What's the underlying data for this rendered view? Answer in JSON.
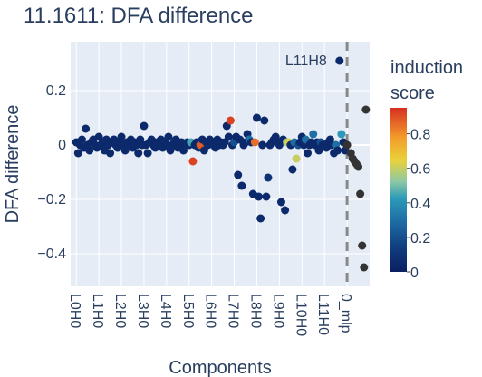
{
  "chart_data": {
    "type": "scatter",
    "title": "11.1611: DFA difference",
    "xlabel": "Components",
    "ylabel": "DFA difference",
    "ylim": [
      -0.52,
      0.38
    ],
    "y_ticks": [
      0.2,
      0,
      -0.2,
      -0.4
    ],
    "y_tick_labels": [
      "0.2",
      "0",
      "−0.2",
      "−0.4"
    ],
    "x_categories": [
      "L0H0",
      "L1H0",
      "L2H0",
      "L3H0",
      "L4H0",
      "L5H0",
      "L6H0",
      "L7H0",
      "L8H0",
      "L9H0",
      "L10H0",
      "L11H0",
      "0_mlp"
    ],
    "x_category_index": [
      0,
      12,
      24,
      36,
      48,
      60,
      72,
      84,
      96,
      108,
      120,
      132,
      144
    ],
    "x_range": [
      -3,
      156
    ],
    "divider_x": 144,
    "grid": true,
    "colorbar": {
      "title_lines": [
        "induction",
        "score"
      ],
      "min": 0,
      "max": 0.95,
      "ticks": [
        0,
        0.2,
        0.4,
        0.6,
        0.8
      ],
      "tick_labels": [
        "0",
        "0.2",
        "0.4",
        "0.6",
        "0.8"
      ]
    },
    "annotation": {
      "text": "L11H8",
      "x": 140,
      "y": 0.31
    },
    "points": [
      [
        0,
        0.01,
        0.05
      ],
      [
        1,
        -0.03,
        0.05
      ],
      [
        2,
        0.0,
        0.05
      ],
      [
        3,
        0.02,
        0.05
      ],
      [
        4,
        -0.01,
        0.05
      ],
      [
        5,
        0.06,
        0.05
      ],
      [
        6,
        0.0,
        0.05
      ],
      [
        7,
        -0.02,
        0.05
      ],
      [
        8,
        0.01,
        0.05
      ],
      [
        9,
        0.02,
        0.05
      ],
      [
        10,
        0.0,
        0.05
      ],
      [
        11,
        -0.01,
        0.05
      ],
      [
        12,
        0.03,
        0.05
      ],
      [
        13,
        0.0,
        0.05
      ],
      [
        14,
        0.01,
        0.05
      ],
      [
        15,
        -0.02,
        0.05
      ],
      [
        16,
        0.02,
        0.05
      ],
      [
        17,
        0.0,
        0.05
      ],
      [
        18,
        -0.03,
        0.05
      ],
      [
        19,
        0.01,
        0.05
      ],
      [
        20,
        0.02,
        0.05
      ],
      [
        21,
        0.0,
        0.05
      ],
      [
        22,
        -0.01,
        0.05
      ],
      [
        23,
        0.01,
        0.05
      ],
      [
        24,
        0.03,
        0.05
      ],
      [
        25,
        0.0,
        0.05
      ],
      [
        26,
        -0.02,
        0.05
      ],
      [
        27,
        0.01,
        0.05
      ],
      [
        28,
        0.0,
        0.05
      ],
      [
        29,
        0.02,
        0.05
      ],
      [
        30,
        -0.01,
        0.05
      ],
      [
        31,
        0.01,
        0.05
      ],
      [
        32,
        0.0,
        0.05
      ],
      [
        33,
        -0.03,
        0.05
      ],
      [
        34,
        0.02,
        0.05
      ],
      [
        35,
        0.0,
        0.05
      ],
      [
        36,
        0.07,
        0.05
      ],
      [
        37,
        0.0,
        0.05
      ],
      [
        38,
        -0.03,
        0.05
      ],
      [
        39,
        0.01,
        0.05
      ],
      [
        40,
        0.02,
        0.05
      ],
      [
        41,
        0.0,
        0.05
      ],
      [
        42,
        -0.01,
        0.05
      ],
      [
        43,
        0.01,
        0.05
      ],
      [
        44,
        0.0,
        0.05
      ],
      [
        45,
        0.02,
        0.05
      ],
      [
        46,
        -0.01,
        0.05
      ],
      [
        47,
        0.01,
        0.05
      ],
      [
        48,
        0.0,
        0.05
      ],
      [
        49,
        0.03,
        0.05
      ],
      [
        50,
        -0.02,
        0.05
      ],
      [
        51,
        0.0,
        0.05
      ],
      [
        52,
        0.01,
        0.05
      ],
      [
        53,
        0.02,
        0.05
      ],
      [
        54,
        -0.01,
        0.05
      ],
      [
        55,
        0.0,
        0.05
      ],
      [
        56,
        0.01,
        0.05
      ],
      [
        57,
        -0.02,
        0.05
      ],
      [
        58,
        0.0,
        0.05
      ],
      [
        59,
        0.01,
        0.05
      ],
      [
        60,
        0.0,
        0.05
      ],
      [
        61,
        0.01,
        0.45
      ],
      [
        62,
        -0.06,
        0.92
      ],
      [
        63,
        0.0,
        0.05
      ],
      [
        64,
        0.01,
        0.05
      ],
      [
        65,
        -0.01,
        0.08
      ],
      [
        66,
        0.0,
        0.88
      ],
      [
        67,
        0.02,
        0.05
      ],
      [
        68,
        -0.02,
        0.05
      ],
      [
        69,
        0.01,
        0.05
      ],
      [
        70,
        0.0,
        0.05
      ],
      [
        71,
        0.02,
        0.05
      ],
      [
        72,
        0.01,
        0.05
      ],
      [
        73,
        0.0,
        0.05
      ],
      [
        74,
        -0.01,
        0.05
      ],
      [
        75,
        0.02,
        0.05
      ],
      [
        76,
        0.0,
        0.05
      ],
      [
        77,
        0.01,
        0.05
      ],
      [
        78,
        0.0,
        0.05
      ],
      [
        79,
        0.01,
        0.05
      ],
      [
        80,
        0.07,
        0.05
      ],
      [
        81,
        0.03,
        0.05
      ],
      [
        82,
        0.09,
        0.92
      ],
      [
        83,
        0.0,
        0.05
      ],
      [
        84,
        0.01,
        0.2
      ],
      [
        85,
        0.03,
        0.05
      ],
      [
        86,
        -0.11,
        0.05
      ],
      [
        87,
        0.02,
        0.05
      ],
      [
        88,
        -0.15,
        0.05
      ],
      [
        89,
        0.0,
        0.05
      ],
      [
        90,
        0.01,
        0.05
      ],
      [
        91,
        0.04,
        0.05
      ],
      [
        92,
        0.02,
        0.3
      ],
      [
        93,
        0.01,
        0.05
      ],
      [
        94,
        -0.18,
        0.05
      ],
      [
        95,
        0.01,
        0.85
      ],
      [
        96,
        0.1,
        0.05
      ],
      [
        97,
        -0.19,
        0.05
      ],
      [
        98,
        -0.27,
        0.05
      ],
      [
        99,
        0.0,
        0.05
      ],
      [
        100,
        0.09,
        0.05
      ],
      [
        101,
        -0.19,
        0.05
      ],
      [
        102,
        -0.12,
        0.1
      ],
      [
        103,
        0.0,
        0.05
      ],
      [
        104,
        0.01,
        0.05
      ],
      [
        105,
        0.02,
        0.05
      ],
      [
        106,
        0.03,
        0.05
      ],
      [
        107,
        0.01,
        0.05
      ],
      [
        108,
        0.0,
        0.05
      ],
      [
        109,
        -0.21,
        0.05
      ],
      [
        110,
        0.02,
        0.05
      ],
      [
        111,
        -0.24,
        0.05
      ],
      [
        112,
        0.01,
        0.55
      ],
      [
        113,
        0.01,
        0.62
      ],
      [
        114,
        0.0,
        0.05
      ],
      [
        115,
        -0.09,
        0.05
      ],
      [
        116,
        0.01,
        0.3
      ],
      [
        117,
        -0.05,
        0.6
      ],
      [
        118,
        0.0,
        0.2
      ],
      [
        119,
        0.01,
        0.05
      ],
      [
        120,
        0.03,
        0.05
      ],
      [
        121,
        0.0,
        0.05
      ],
      [
        122,
        0.02,
        0.3
      ],
      [
        123,
        -0.03,
        0.05
      ],
      [
        124,
        0.0,
        0.05
      ],
      [
        125,
        0.01,
        0.05
      ],
      [
        126,
        0.04,
        0.3
      ],
      [
        127,
        0.0,
        0.05
      ],
      [
        128,
        0.01,
        0.05
      ],
      [
        129,
        -0.02,
        0.05
      ],
      [
        130,
        0.01,
        0.2
      ],
      [
        131,
        0.0,
        0.05
      ],
      [
        132,
        0.0,
        0.05
      ],
      [
        133,
        -0.01,
        0.05
      ],
      [
        134,
        0.01,
        0.05
      ],
      [
        135,
        0.02,
        0.05
      ],
      [
        136,
        0.0,
        0.05
      ],
      [
        137,
        -0.03,
        0.05
      ],
      [
        138,
        0.0,
        0.3
      ],
      [
        139,
        -0.02,
        0.05
      ],
      [
        140,
        0.31,
        0.05
      ],
      [
        141,
        0.04,
        0.42
      ],
      [
        142,
        0.01,
        0.05
      ],
      [
        143,
        -0.02,
        0.05
      ],
      [
        144,
        0.0,
        null
      ],
      [
        146,
        -0.03,
        null
      ],
      [
        147,
        -0.05,
        null
      ],
      [
        148,
        -0.06,
        null
      ],
      [
        149,
        -0.07,
        null
      ],
      [
        150,
        -0.08,
        null
      ],
      [
        151,
        -0.18,
        null
      ],
      [
        152,
        -0.37,
        null
      ],
      [
        153,
        -0.45,
        null
      ],
      [
        154,
        0.13,
        null
      ]
    ]
  }
}
